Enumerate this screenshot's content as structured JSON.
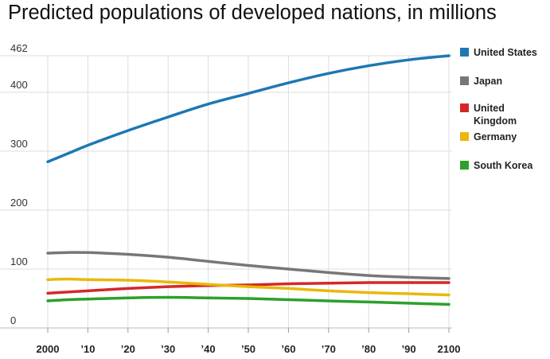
{
  "chart_data": {
    "type": "line",
    "title": "Predicted populations of developed nations, in millions",
    "xlabel": "",
    "ylabel": "",
    "x": [
      2000,
      2005,
      2010,
      2020,
      2030,
      2040,
      2050,
      2060,
      2070,
      2080,
      2090,
      2100
    ],
    "x_tick_values": [
      2000,
      2010,
      2020,
      2030,
      2040,
      2050,
      2060,
      2070,
      2080,
      2090,
      2100
    ],
    "x_tick_labels": [
      "2000",
      "’10",
      "’20",
      "’30",
      "’40",
      "’50",
      "’60",
      "’70",
      "’80",
      "’90",
      "2100"
    ],
    "y_ticks": [
      0,
      100,
      200,
      300,
      400,
      462
    ],
    "y_tick_labels": [
      "0",
      "100",
      "200",
      "300",
      "400",
      "462"
    ],
    "xlim": [
      2000,
      2100
    ],
    "ylim": [
      0,
      462
    ],
    "grid": true,
    "legend_position": "right",
    "series": [
      {
        "name": "United States",
        "color": "#1f77b4",
        "values": [
          282,
          296,
          310,
          335,
          358,
          380,
          398,
          416,
          432,
          445,
          455,
          462
        ]
      },
      {
        "name": "Japan",
        "color": "#777777",
        "values": [
          127,
          128,
          128,
          125,
          120,
          113,
          106,
          100,
          94,
          89,
          86,
          84
        ]
      },
      {
        "name": "United Kingdom",
        "color": "#d62728",
        "values": [
          59,
          61,
          63,
          67,
          70,
          72,
          73,
          75,
          76,
          77,
          77,
          77
        ]
      },
      {
        "name": "Germany",
        "color": "#e8b90a",
        "values": [
          82,
          83,
          82,
          81,
          78,
          74,
          70,
          67,
          63,
          60,
          58,
          56
        ]
      },
      {
        "name": "South Korea",
        "color": "#2ca02c",
        "values": [
          46,
          48,
          49,
          51,
          52,
          51,
          50,
          48,
          46,
          44,
          42,
          40
        ]
      }
    ]
  }
}
